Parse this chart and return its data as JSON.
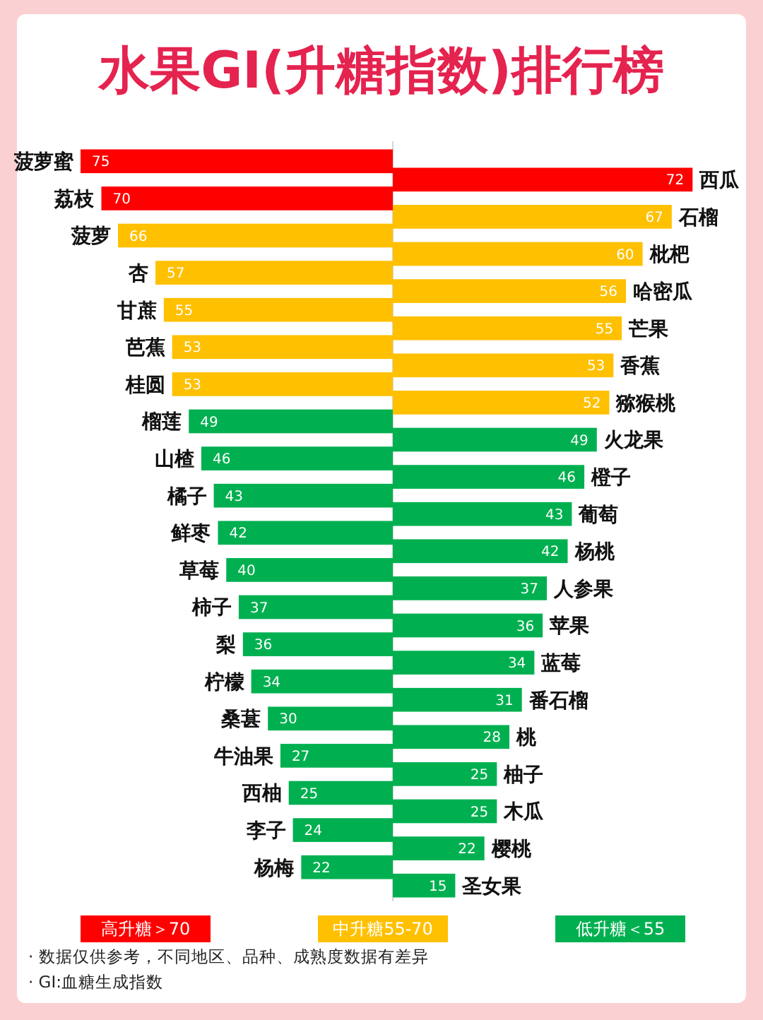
{
  "chart_data": [
    {
      "type": "bar",
      "orientation": "horizontal",
      "title": "水果GI(升糖指数)排行榜",
      "data_labels": true,
      "legend": "bottom",
      "categories": [
        "菠萝蜜",
        "荔枝",
        "菠萝",
        "杏",
        "甘蔗",
        "芭蕉",
        "桂圆",
        "榴莲",
        "山楂",
        "橘子",
        "鲜枣",
        "草莓",
        "柿子",
        "梨",
        "柠檬",
        "桑葚",
        "牛油果",
        "西柚",
        "李子",
        "杨梅"
      ],
      "series": [
        {
          "name": "高升糖＞70",
          "color": "#ff0000",
          "values": [
            75,
            70,
            null,
            null,
            null,
            null,
            null,
            null,
            null,
            null,
            null,
            null,
            null,
            null,
            null,
            null,
            null,
            null,
            null,
            null
          ]
        },
        {
          "name": "中升糖55-70",
          "color": "#ffc000",
          "values": [
            null,
            null,
            66,
            57,
            55,
            53,
            53,
            null,
            null,
            null,
            null,
            null,
            null,
            null,
            null,
            null,
            null,
            null,
            null,
            null
          ]
        },
        {
          "name": "低升糖＜55",
          "color": "#00b050",
          "values": [
            null,
            null,
            null,
            null,
            null,
            null,
            null,
            49,
            46,
            43,
            42,
            40,
            37,
            36,
            34,
            30,
            27,
            25,
            24,
            22
          ]
        }
      ],
      "annotations": [
        "· 数据仅供参考，不同地区、品种、成熟度数据有差异",
        "· GI:血糖生成指数"
      ]
    },
    {
      "type": "bar",
      "orientation": "horizontal",
      "data_labels": true,
      "categories": [
        "西瓜",
        "石榴",
        "枇杷",
        "哈密瓜",
        "芒果",
        "香蕉",
        "猕猴桃",
        "火龙果",
        "橙子",
        "葡萄",
        "杨桃",
        "人参果",
        "苹果",
        "蓝莓",
        "番石榴",
        "桃",
        "柚子",
        "木瓜",
        "樱桃",
        "圣女果"
      ],
      "series": [
        {
          "color": "#ff0000",
          "values": [
            72,
            null,
            null,
            null,
            null,
            null,
            null,
            null,
            null,
            null,
            null,
            null,
            null,
            null,
            null,
            null,
            null,
            null,
            null,
            null
          ]
        },
        {
          "color": "#ffc000",
          "values": [
            null,
            67,
            60,
            56,
            55,
            53,
            52,
            null,
            null,
            null,
            null,
            null,
            null,
            null,
            null,
            null,
            null,
            null,
            null,
            null
          ]
        },
        {
          "color": "#00b050",
          "values": [
            null,
            null,
            null,
            null,
            null,
            null,
            null,
            49,
            46,
            43,
            42,
            37,
            36,
            34,
            31,
            28,
            25,
            25,
            22,
            15
          ]
        }
      ]
    }
  ]
}
